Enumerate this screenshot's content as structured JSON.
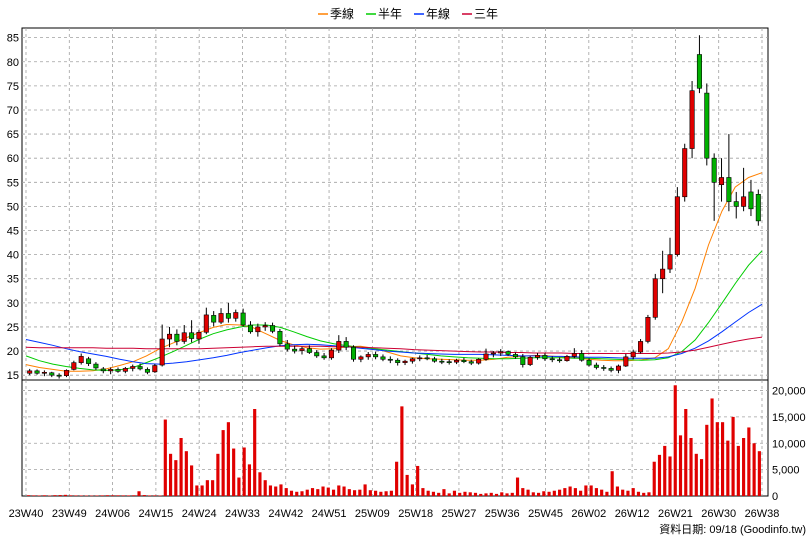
{
  "legend": [
    {
      "label": "季線",
      "color": "#FF8000"
    },
    {
      "label": "半年",
      "color": "#00CC00"
    },
    {
      "label": "年線",
      "color": "#0033FF"
    },
    {
      "label": "三年",
      "color": "#CC0033"
    }
  ],
  "footer": "資料日期: 09/18 (Goodinfo.tw)",
  "colors": {
    "up": "#E00000",
    "down": "#00B000",
    "volume": "#E00000",
    "grid": "#A0A0A0"
  },
  "chart_data": [
    {
      "type": "candlestick",
      "ylim": [
        14,
        87
      ],
      "yticks": [
        15,
        20,
        25,
        30,
        35,
        40,
        45,
        50,
        55,
        60,
        65,
        70,
        75,
        80,
        85
      ],
      "xticks": [
        "23W40",
        "23W49",
        "24W06",
        "24W15",
        "24W24",
        "24W33",
        "24W42",
        "24W51",
        "25W09",
        "25W18",
        "25W27",
        "25W36",
        "25W45",
        "26W02",
        "26W12",
        "26W21",
        "26W30",
        "26W38"
      ],
      "grid": true,
      "legend_position": "top-center",
      "series": [
        {
          "name": "季線",
          "values": [
            17.2,
            16.6,
            16.2,
            15.8,
            15.8,
            15.9,
            16.3,
            17.0,
            17.8,
            19.0,
            20.5,
            21.7,
            22.8,
            23.9,
            24.9,
            25.5,
            25.4,
            24.8,
            23.5,
            22.2,
            21.3,
            20.7,
            20.4,
            20.5,
            20.9,
            21.0,
            20.6,
            19.8,
            19.0,
            18.6,
            18.4,
            18.3,
            18.2,
            18.1,
            18.1,
            18.3,
            18.7,
            18.9,
            19.1,
            19.0,
            18.8,
            18.6,
            18.3,
            18.1,
            18.0,
            18.0,
            18.2,
            18.6,
            20.5,
            26.0,
            33.0,
            42.0,
            49.0,
            54.0,
            56.0,
            57.0
          ]
        },
        {
          "name": "半年",
          "values": [
            19.0,
            18.0,
            17.3,
            16.8,
            16.4,
            16.1,
            16.0,
            16.1,
            16.6,
            17.6,
            18.7,
            19.9,
            21.2,
            22.5,
            23.6,
            24.4,
            25.0,
            25.4,
            25.4,
            24.9,
            24.0,
            23.0,
            22.1,
            21.5,
            21.1,
            20.8,
            20.5,
            20.2,
            19.9,
            19.6,
            19.3,
            19.0,
            18.8,
            18.6,
            18.5,
            18.4,
            18.4,
            18.5,
            18.6,
            18.6,
            18.6,
            18.5,
            18.5,
            18.4,
            18.3,
            18.2,
            18.1,
            18.2,
            18.6,
            19.9,
            22.3,
            25.9,
            29.9,
            34.0,
            37.8,
            40.8
          ]
        },
        {
          "name": "年線",
          "values": [
            22.4,
            21.8,
            21.2,
            20.5,
            19.9,
            19.4,
            18.9,
            18.3,
            17.8,
            17.4,
            17.3,
            17.5,
            17.8,
            18.2,
            18.6,
            19.1,
            19.7,
            20.2,
            20.7,
            21.1,
            21.3,
            21.4,
            21.3,
            21.1,
            20.9,
            20.6,
            20.3,
            20.0,
            19.8,
            19.6,
            19.5,
            19.4,
            19.3,
            19.3,
            19.3,
            19.2,
            19.1,
            19.0,
            19.0,
            18.9,
            18.9,
            18.8,
            18.7,
            18.7,
            18.6,
            18.5,
            18.5,
            18.5,
            18.8,
            19.5,
            20.6,
            22.1,
            24.0,
            26.0,
            28.0,
            29.7
          ]
        },
        {
          "name": "三年",
          "values": [
            20.8,
            20.7,
            20.7,
            20.7,
            20.7,
            20.7,
            20.6,
            20.6,
            20.6,
            20.5,
            20.5,
            20.5,
            20.5,
            20.5,
            20.6,
            20.7,
            20.8,
            20.9,
            21.0,
            21.0,
            21.0,
            21.0,
            21.0,
            20.9,
            20.9,
            20.8,
            20.7,
            20.6,
            20.5,
            20.3,
            20.2,
            20.1,
            20.0,
            19.9,
            19.8,
            19.8,
            19.7,
            19.7,
            19.6,
            19.6,
            19.6,
            19.5,
            19.5,
            19.5,
            19.5,
            19.5,
            19.5,
            19.5,
            19.6,
            19.8,
            20.2,
            20.8,
            21.4,
            22.0,
            22.5,
            22.9
          ]
        }
      ],
      "candles": [
        {
          "o": 15.4,
          "h": 16.3,
          "l": 15.0,
          "c": 15.9
        },
        {
          "o": 15.9,
          "h": 16.2,
          "l": 15.1,
          "c": 15.4
        },
        {
          "o": 15.4,
          "h": 16.0,
          "l": 14.8,
          "c": 15.6
        },
        {
          "o": 15.5,
          "h": 15.7,
          "l": 14.6,
          "c": 15.0
        },
        {
          "o": 15.0,
          "h": 15.4,
          "l": 14.3,
          "c": 14.8
        },
        {
          "o": 14.9,
          "h": 16.2,
          "l": 14.6,
          "c": 16.0
        },
        {
          "o": 16.2,
          "h": 18.0,
          "l": 16.0,
          "c": 17.6
        },
        {
          "o": 17.6,
          "h": 19.5,
          "l": 17.2,
          "c": 18.9
        },
        {
          "o": 18.4,
          "h": 18.8,
          "l": 16.9,
          "c": 17.4
        },
        {
          "o": 17.3,
          "h": 17.7,
          "l": 16.1,
          "c": 16.5
        },
        {
          "o": 16.3,
          "h": 16.7,
          "l": 15.4,
          "c": 15.9
        },
        {
          "o": 15.9,
          "h": 16.6,
          "l": 15.2,
          "c": 16.2
        },
        {
          "o": 16.2,
          "h": 16.6,
          "l": 15.5,
          "c": 15.8
        },
        {
          "o": 15.8,
          "h": 16.7,
          "l": 15.4,
          "c": 16.4
        },
        {
          "o": 16.4,
          "h": 17.2,
          "l": 15.8,
          "c": 16.8
        },
        {
          "o": 16.8,
          "h": 17.4,
          "l": 16.0,
          "c": 16.3
        },
        {
          "o": 16.2,
          "h": 16.6,
          "l": 15.2,
          "c": 15.6
        },
        {
          "o": 15.7,
          "h": 17.3,
          "l": 15.5,
          "c": 17.0
        },
        {
          "o": 17.1,
          "h": 25.5,
          "l": 16.8,
          "c": 22.5
        },
        {
          "o": 22.5,
          "h": 25.0,
          "l": 20.8,
          "c": 23.5
        },
        {
          "o": 23.5,
          "h": 24.5,
          "l": 21.2,
          "c": 22.0
        },
        {
          "o": 22.0,
          "h": 25.4,
          "l": 21.5,
          "c": 23.8
        },
        {
          "o": 23.8,
          "h": 26.4,
          "l": 21.8,
          "c": 22.6
        },
        {
          "o": 22.5,
          "h": 24.4,
          "l": 21.5,
          "c": 23.9
        },
        {
          "o": 23.9,
          "h": 29.0,
          "l": 23.5,
          "c": 27.5
        },
        {
          "o": 27.4,
          "h": 28.3,
          "l": 25.1,
          "c": 26.0
        },
        {
          "o": 26.0,
          "h": 28.9,
          "l": 25.6,
          "c": 27.8
        },
        {
          "o": 27.8,
          "h": 30.0,
          "l": 25.9,
          "c": 26.8
        },
        {
          "o": 26.8,
          "h": 28.6,
          "l": 26.1,
          "c": 28.0
        },
        {
          "o": 27.9,
          "h": 28.8,
          "l": 25.1,
          "c": 25.4
        },
        {
          "o": 25.4,
          "h": 26.2,
          "l": 23.6,
          "c": 24.0
        },
        {
          "o": 24.0,
          "h": 25.7,
          "l": 23.0,
          "c": 25.0
        },
        {
          "o": 25.0,
          "h": 26.0,
          "l": 24.2,
          "c": 25.3
        },
        {
          "o": 25.3,
          "h": 25.9,
          "l": 23.7,
          "c": 24.1
        },
        {
          "o": 24.1,
          "h": 24.6,
          "l": 21.0,
          "c": 21.5
        },
        {
          "o": 21.5,
          "h": 22.3,
          "l": 19.9,
          "c": 20.4
        },
        {
          "o": 20.4,
          "h": 21.1,
          "l": 19.5,
          "c": 20.0
        },
        {
          "o": 20.1,
          "h": 20.9,
          "l": 19.3,
          "c": 20.5
        },
        {
          "o": 20.5,
          "h": 21.2,
          "l": 19.4,
          "c": 19.7
        },
        {
          "o": 19.7,
          "h": 20.2,
          "l": 18.6,
          "c": 19.0
        },
        {
          "o": 19.0,
          "h": 19.6,
          "l": 18.2,
          "c": 18.6
        },
        {
          "o": 18.6,
          "h": 20.6,
          "l": 18.2,
          "c": 20.2
        },
        {
          "o": 20.2,
          "h": 23.3,
          "l": 19.6,
          "c": 22.0
        },
        {
          "o": 22.0,
          "h": 22.9,
          "l": 20.2,
          "c": 20.8
        },
        {
          "o": 20.8,
          "h": 21.2,
          "l": 17.8,
          "c": 18.3
        },
        {
          "o": 18.3,
          "h": 19.1,
          "l": 17.7,
          "c": 18.8
        },
        {
          "o": 18.8,
          "h": 19.8,
          "l": 18.2,
          "c": 19.3
        },
        {
          "o": 19.3,
          "h": 19.9,
          "l": 18.3,
          "c": 18.8
        },
        {
          "o": 18.8,
          "h": 19.3,
          "l": 17.9,
          "c": 18.3
        },
        {
          "o": 18.3,
          "h": 18.9,
          "l": 17.5,
          "c": 18.1
        },
        {
          "o": 18.1,
          "h": 18.5,
          "l": 17.0,
          "c": 17.6
        },
        {
          "o": 17.6,
          "h": 18.2,
          "l": 17.1,
          "c": 17.9
        },
        {
          "o": 17.9,
          "h": 18.6,
          "l": 17.4,
          "c": 18.4
        },
        {
          "o": 18.4,
          "h": 19.1,
          "l": 17.9,
          "c": 18.6
        },
        {
          "o": 18.6,
          "h": 19.2,
          "l": 18.1,
          "c": 18.4
        },
        {
          "o": 18.4,
          "h": 18.8,
          "l": 17.6,
          "c": 17.9
        },
        {
          "o": 17.9,
          "h": 18.4,
          "l": 17.3,
          "c": 17.8
        },
        {
          "o": 17.8,
          "h": 18.3,
          "l": 17.2,
          "c": 17.7
        },
        {
          "o": 17.7,
          "h": 18.4,
          "l": 17.3,
          "c": 18.1
        },
        {
          "o": 18.1,
          "h": 18.6,
          "l": 17.5,
          "c": 17.8
        },
        {
          "o": 17.8,
          "h": 18.2,
          "l": 17.1,
          "c": 17.5
        },
        {
          "o": 17.5,
          "h": 18.5,
          "l": 17.2,
          "c": 18.3
        },
        {
          "o": 18.3,
          "h": 20.5,
          "l": 18.0,
          "c": 19.4
        },
        {
          "o": 19.4,
          "h": 20.0,
          "l": 18.7,
          "c": 19.6
        },
        {
          "o": 19.6,
          "h": 20.4,
          "l": 19.0,
          "c": 19.9
        },
        {
          "o": 19.9,
          "h": 20.1,
          "l": 19.0,
          "c": 19.3
        },
        {
          "o": 19.3,
          "h": 19.7,
          "l": 18.4,
          "c": 18.8
        },
        {
          "o": 18.8,
          "h": 19.4,
          "l": 16.6,
          "c": 17.2
        },
        {
          "o": 17.2,
          "h": 19.0,
          "l": 16.9,
          "c": 18.7
        },
        {
          "o": 18.7,
          "h": 19.6,
          "l": 18.2,
          "c": 19.1
        },
        {
          "o": 19.1,
          "h": 19.5,
          "l": 18.0,
          "c": 18.4
        },
        {
          "o": 18.4,
          "h": 18.9,
          "l": 17.7,
          "c": 18.2
        },
        {
          "o": 18.2,
          "h": 18.7,
          "l": 17.6,
          "c": 18.0
        },
        {
          "o": 18.0,
          "h": 19.2,
          "l": 17.8,
          "c": 18.9
        },
        {
          "o": 18.9,
          "h": 20.6,
          "l": 18.5,
          "c": 19.5
        },
        {
          "o": 19.5,
          "h": 20.2,
          "l": 17.8,
          "c": 18.1
        },
        {
          "o": 18.1,
          "h": 18.5,
          "l": 16.8,
          "c": 17.1
        },
        {
          "o": 17.1,
          "h": 17.6,
          "l": 16.2,
          "c": 16.6
        },
        {
          "o": 16.6,
          "h": 17.1,
          "l": 15.9,
          "c": 16.4
        },
        {
          "o": 16.4,
          "h": 16.8,
          "l": 15.6,
          "c": 16.0
        },
        {
          "o": 16.0,
          "h": 17.2,
          "l": 15.4,
          "c": 16.9
        },
        {
          "o": 16.9,
          "h": 19.4,
          "l": 16.7,
          "c": 18.8
        },
        {
          "o": 18.8,
          "h": 20.3,
          "l": 18.3,
          "c": 19.8
        },
        {
          "o": 19.8,
          "h": 22.5,
          "l": 19.5,
          "c": 22.0
        },
        {
          "o": 22.0,
          "h": 27.5,
          "l": 21.6,
          "c": 27.0
        },
        {
          "o": 27.0,
          "h": 36.0,
          "l": 26.5,
          "c": 35.0
        },
        {
          "o": 35.0,
          "h": 40.8,
          "l": 32.0,
          "c": 37.0
        },
        {
          "o": 37.0,
          "h": 43.5,
          "l": 36.2,
          "c": 40.0
        },
        {
          "o": 40.0,
          "h": 54.0,
          "l": 39.6,
          "c": 52.0
        },
        {
          "o": 52.0,
          "h": 63.0,
          "l": 51.0,
          "c": 62.0
        },
        {
          "o": 62.0,
          "h": 76.0,
          "l": 60.0,
          "c": 74.0
        },
        {
          "o": 81.5,
          "h": 85.5,
          "l": 73.5,
          "c": 74.5
        },
        {
          "o": 73.5,
          "h": 75.5,
          "l": 58.5,
          "c": 60.0
        },
        {
          "o": 60.0,
          "h": 61.0,
          "l": 47.0,
          "c": 55.0
        },
        {
          "o": 54.5,
          "h": 60.0,
          "l": 51.0,
          "c": 56.0
        },
        {
          "o": 56.0,
          "h": 65.0,
          "l": 49.0,
          "c": 51.0
        },
        {
          "o": 51.0,
          "h": 53.0,
          "l": 47.5,
          "c": 50.0
        },
        {
          "o": 50.0,
          "h": 58.0,
          "l": 49.0,
          "c": 52.0
        },
        {
          "o": 53.0,
          "h": 55.5,
          "l": 48.0,
          "c": 49.5
        },
        {
          "o": 52.5,
          "h": 53.5,
          "l": 46.0,
          "c": 47.0
        }
      ]
    },
    {
      "type": "bar",
      "ylim": [
        0,
        22000
      ],
      "yticks": [
        0,
        5000,
        10000,
        15000,
        20000
      ],
      "ytick_labels": [
        "0",
        "5,000",
        "10,000",
        "15,000",
        "20,000"
      ],
      "values": [
        150,
        120,
        100,
        140,
        90,
        160,
        180,
        220,
        130,
        110,
        100,
        90,
        80,
        100,
        120,
        150,
        140,
        130,
        120,
        110,
        140,
        900,
        180,
        110,
        120,
        100,
        14500,
        8000,
        6800,
        11000,
        8500,
        5800,
        2000,
        2000,
        3000,
        3000,
        8000,
        12500,
        14000,
        9000,
        3500,
        9200,
        6000,
        16500,
        4500,
        3000,
        2000,
        1800,
        2200,
        1500,
        1000,
        800,
        900,
        1200,
        1500,
        1300,
        1800,
        1600,
        1200,
        2000,
        1800,
        1300,
        1100,
        1200,
        2200,
        1100,
        1000,
        800,
        900,
        1000,
        6500,
        17000,
        4000,
        2200,
        5700,
        1500,
        1000,
        800,
        600,
        1300,
        500,
        1000,
        600,
        800,
        700,
        600,
        400,
        500,
        600,
        400,
        700,
        500,
        600,
        3500,
        1500,
        1200,
        700,
        600,
        900,
        800,
        1000,
        1200,
        1500,
        1800,
        1500,
        1000,
        2000,
        2000,
        1500,
        1200,
        800,
        4700,
        1800,
        1200,
        1000,
        1500,
        800,
        600,
        700,
        6500,
        7800,
        9500,
        7500,
        21000,
        11500,
        16500,
        11000,
        8000,
        7000,
        13500,
        18500,
        14000,
        14000,
        10500,
        15000,
        9500,
        11000,
        13000,
        10000,
        8500
      ]
    }
  ]
}
